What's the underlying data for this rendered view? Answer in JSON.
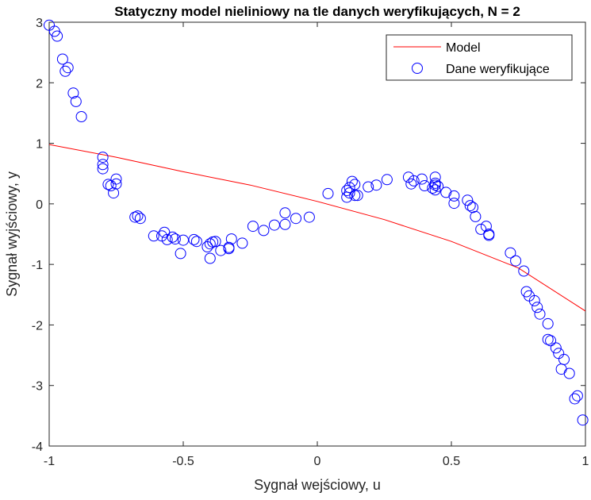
{
  "chart_data": {
    "type": "scatter",
    "title": "Statyczny model nieliniowy na tle danych weryfikujących, N = 2",
    "xlabel": "Sygnał wejściowy, u",
    "ylabel": "Sygnał wyjściowy, y",
    "xlim": [
      -1,
      1
    ],
    "ylim": [
      -4,
      3
    ],
    "xticks": [
      -1,
      -0.5,
      0,
      0.5,
      1
    ],
    "xtick_labels": [
      "-1",
      "-0.5",
      "0",
      "0.5",
      "1"
    ],
    "yticks": [
      3,
      2,
      1,
      0,
      -1,
      -2,
      -3,
      -4
    ],
    "ytick_labels": [
      "3",
      "2",
      "1",
      "0",
      "-1",
      "-2",
      "-3",
      "-4"
    ],
    "grid": false,
    "legend_position": "top-right",
    "series": [
      {
        "name": "Model",
        "kind": "line",
        "color": "#ff0000",
        "x": [
          -1,
          -0.75,
          -0.5,
          -0.25,
          0,
          0.25,
          0.5,
          0.75,
          1
        ],
        "y": [
          0.98,
          0.77,
          0.53,
          0.31,
          0.04,
          -0.26,
          -0.62,
          -1.06,
          -1.77
        ]
      },
      {
        "name": "Dane weryfikujące",
        "kind": "scatter",
        "color": "#0000ff",
        "x": [
          -1.0,
          -0.98,
          -0.97,
          -0.95,
          -0.94,
          -0.93,
          -0.91,
          -0.9,
          -0.88,
          -0.8,
          -0.8,
          -0.8,
          -0.78,
          -0.77,
          -0.76,
          -0.75,
          -0.75,
          -0.68,
          -0.67,
          -0.66,
          -0.61,
          -0.58,
          -0.57,
          -0.56,
          -0.54,
          -0.53,
          -0.51,
          -0.5,
          -0.46,
          -0.45,
          -0.41,
          -0.4,
          -0.4,
          -0.39,
          -0.38,
          -0.36,
          -0.33,
          -0.33,
          -0.32,
          -0.28,
          -0.24,
          -0.2,
          -0.16,
          -0.12,
          -0.12,
          -0.08,
          -0.03,
          0.04,
          0.11,
          0.11,
          0.12,
          0.12,
          0.13,
          0.14,
          0.14,
          0.15,
          0.19,
          0.22,
          0.26,
          0.34,
          0.35,
          0.36,
          0.39,
          0.4,
          0.43,
          0.44,
          0.44,
          0.44,
          0.44,
          0.45,
          0.48,
          0.51,
          0.51,
          0.56,
          0.57,
          0.58,
          0.59,
          0.61,
          0.63,
          0.64,
          0.64,
          0.72,
          0.74,
          0.77,
          0.78,
          0.79,
          0.81,
          0.82,
          0.83,
          0.86,
          0.86,
          0.87,
          0.89,
          0.9,
          0.91,
          0.92,
          0.94,
          0.96,
          0.97,
          0.99
        ],
        "y": [
          2.95,
          2.85,
          2.77,
          2.39,
          2.19,
          2.25,
          1.83,
          1.69,
          1.44,
          0.77,
          0.65,
          0.58,
          0.32,
          0.3,
          0.18,
          0.33,
          0.41,
          -0.22,
          -0.2,
          -0.24,
          -0.53,
          -0.53,
          -0.47,
          -0.59,
          -0.55,
          -0.58,
          -0.82,
          -0.6,
          -0.59,
          -0.62,
          -0.71,
          -0.9,
          -0.66,
          -0.63,
          -0.62,
          -0.77,
          -0.74,
          -0.72,
          -0.58,
          -0.65,
          -0.37,
          -0.44,
          -0.35,
          -0.34,
          -0.15,
          -0.24,
          -0.22,
          0.17,
          0.22,
          0.11,
          0.27,
          0.18,
          0.37,
          0.14,
          0.32,
          0.14,
          0.28,
          0.31,
          0.4,
          0.44,
          0.33,
          0.38,
          0.41,
          0.3,
          0.26,
          0.23,
          0.31,
          0.34,
          0.44,
          0.29,
          0.19,
          0.13,
          0.01,
          0.06,
          -0.03,
          -0.06,
          -0.21,
          -0.42,
          -0.37,
          -0.5,
          -0.52,
          -0.81,
          -0.94,
          -1.11,
          -1.45,
          -1.52,
          -1.6,
          -1.71,
          -1.82,
          -1.98,
          -2.24,
          -2.26,
          -2.38,
          -2.47,
          -2.73,
          -2.57,
          -2.8,
          -3.22,
          -3.17,
          -3.57
        ]
      }
    ]
  }
}
